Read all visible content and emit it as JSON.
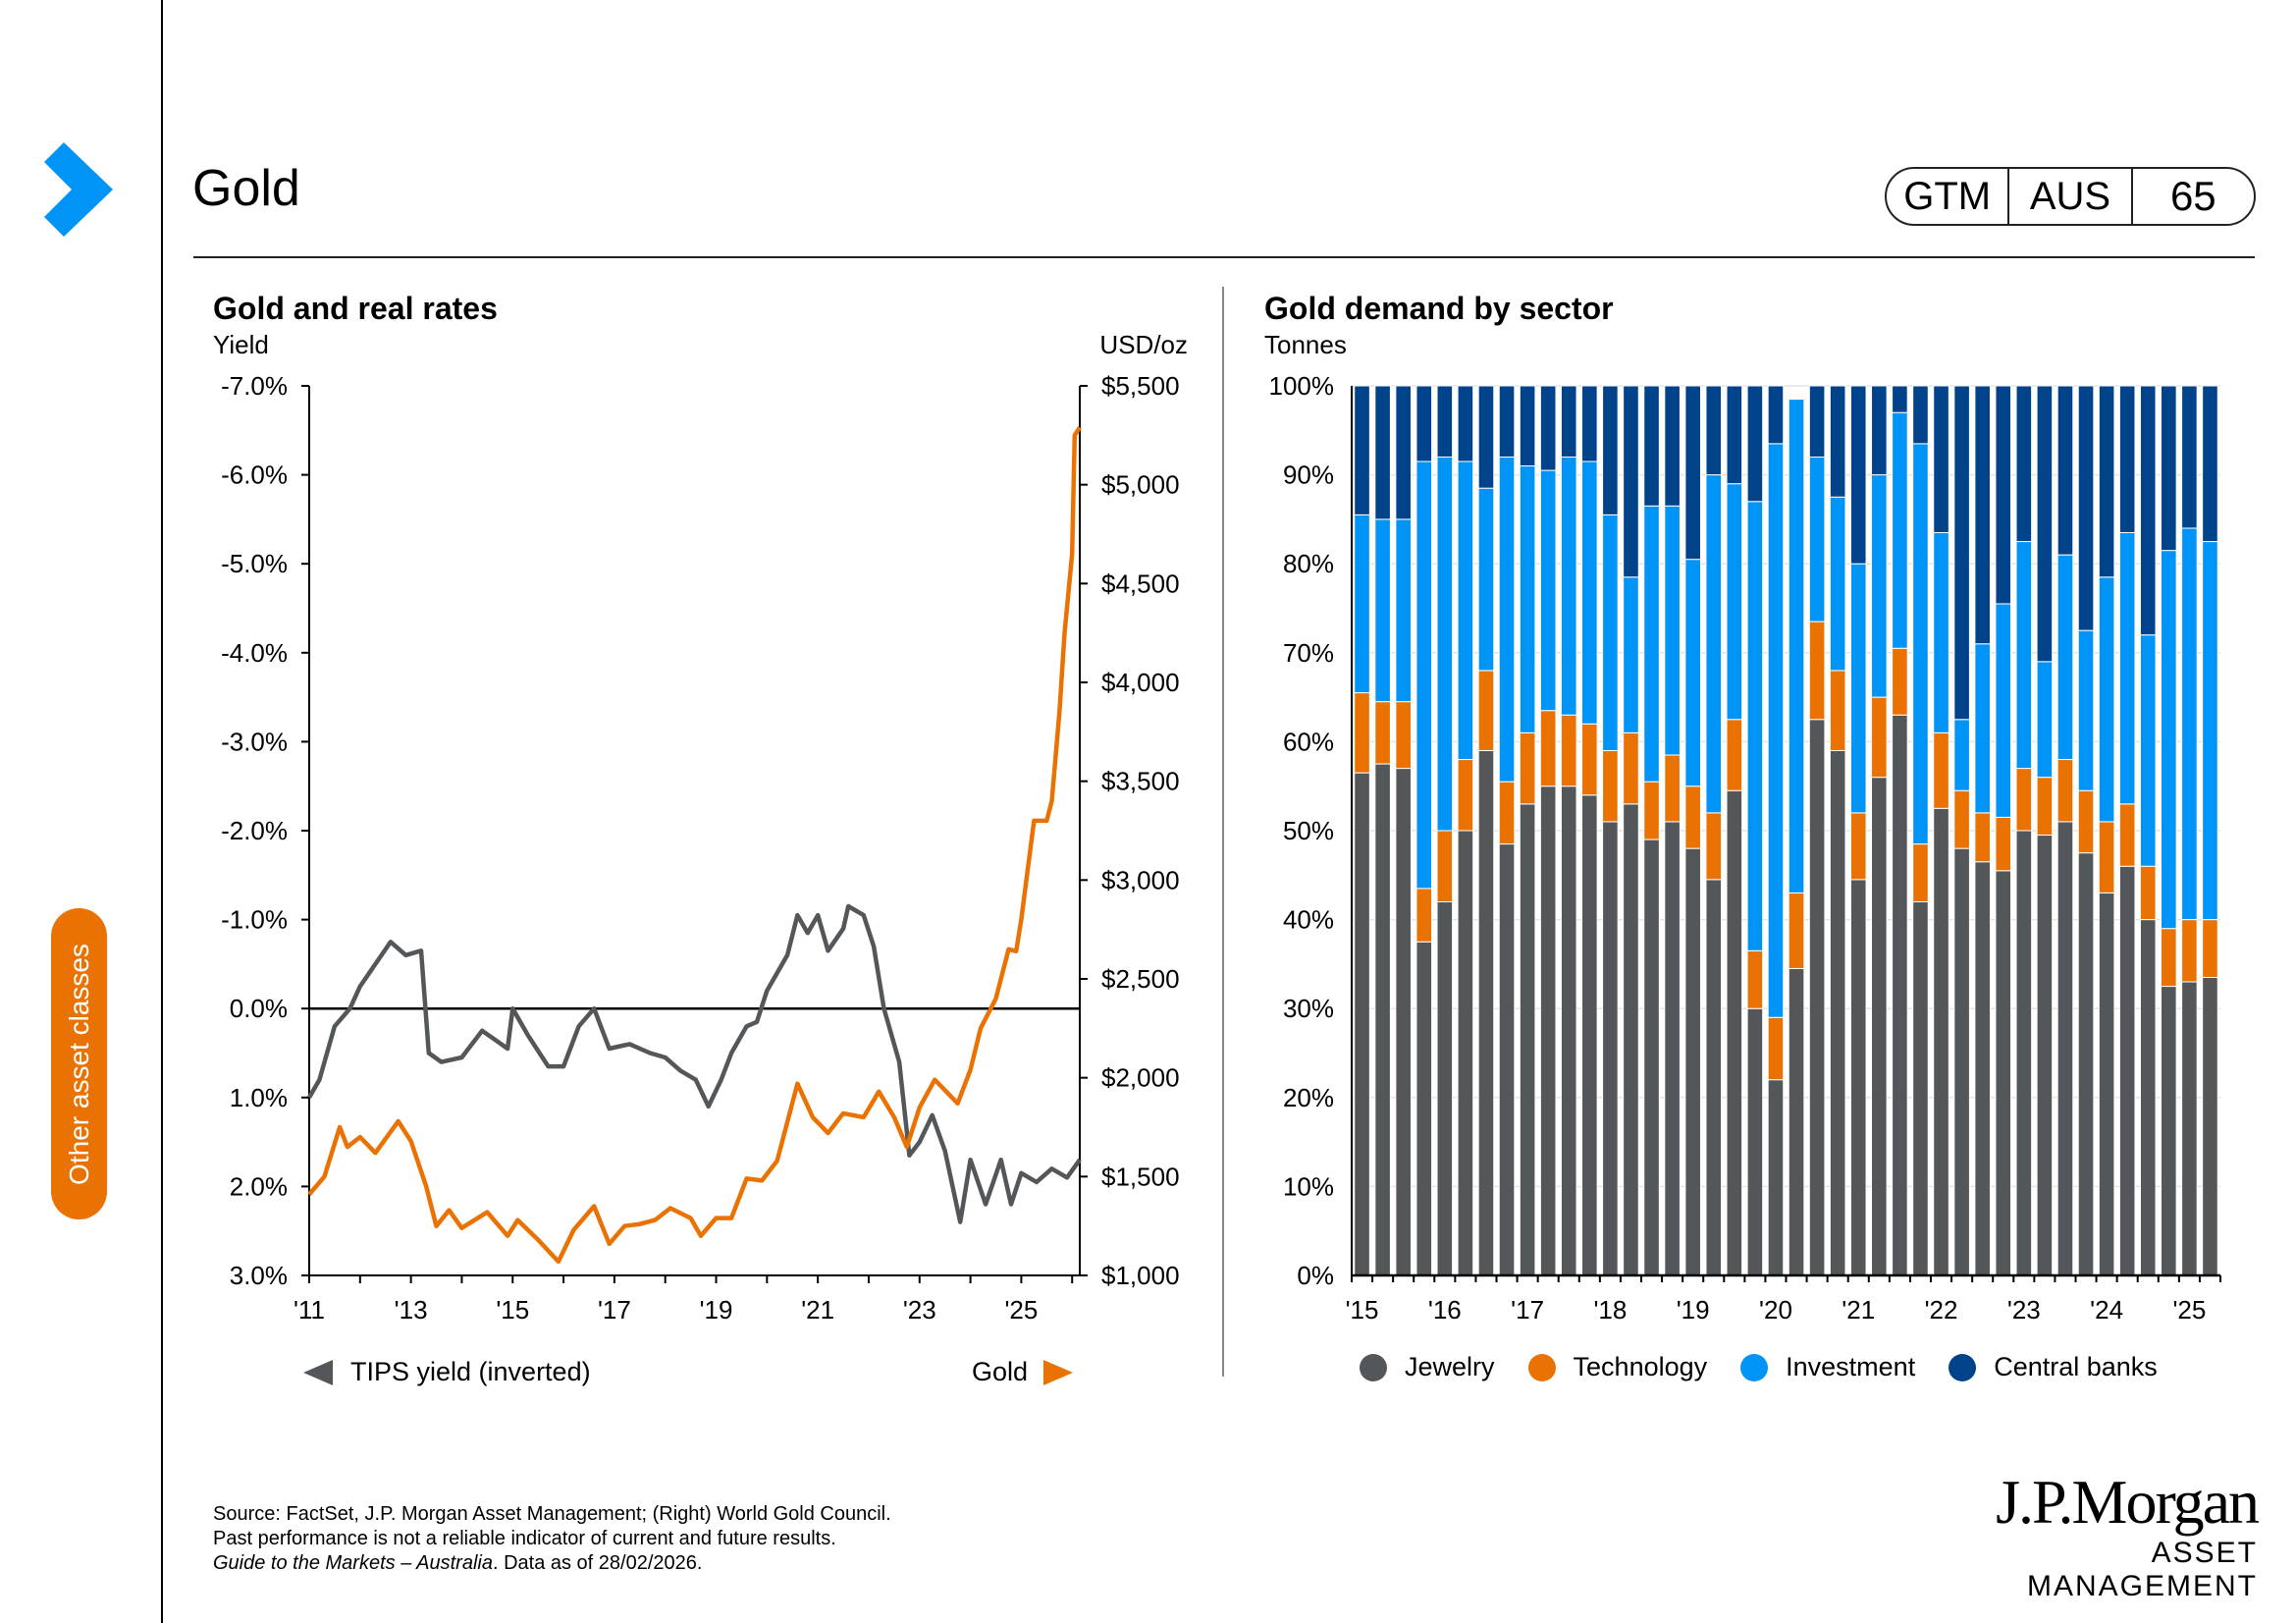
{
  "header": {
    "title": "Gold",
    "badge": [
      "GTM",
      "AUS",
      "65"
    ]
  },
  "side_tab": "Other asset classes",
  "footer": {
    "source": "Source: FactSet, J.P. Morgan Asset Management; (Right) World Gold Council.",
    "disclaimer": "Past performance is not a reliable indicator of current and future results.",
    "guide": "Guide to the Markets – Australia",
    "asof": ". Data as of 28/02/2026."
  },
  "logo": {
    "line1": "J.P.Morgan",
    "line2": "ASSET MANAGEMENT"
  },
  "colors": {
    "gray": "#54575a",
    "orange": "#ea7203",
    "blue": "#0094f7",
    "navy": "#00438a"
  },
  "chart_data": [
    {
      "type": "line",
      "title": "Gold and real rates",
      "ylabel": "Yield",
      "y2label": "USD/oz",
      "ylim": [
        -7,
        3
      ],
      "y_inverted": true,
      "y2lim": [
        1000,
        5500
      ],
      "yticks": [
        "-7.0%",
        "-6.0%",
        "-5.0%",
        "-4.0%",
        "-3.0%",
        "-2.0%",
        "-1.0%",
        "0.0%",
        "1.0%",
        "2.0%",
        "3.0%"
      ],
      "y2ticks": [
        "$5,500",
        "$5,000",
        "$4,500",
        "$4,000",
        "$3,500",
        "$3,000",
        "$2,500",
        "$2,000",
        "$1,500",
        "$1,000"
      ],
      "xticks": [
        "'11",
        "'13",
        "'15",
        "'17",
        "'19",
        "'21",
        "'23",
        "'25"
      ],
      "xlim": [
        2011,
        2026.15
      ],
      "legend": {
        "left": "TIPS yield (inverted)",
        "right": "Gold"
      },
      "series": [
        {
          "name": "TIPS yield (inverted)",
          "axis": "left",
          "color": "#54575a",
          "x": [
            2011.0,
            2011.2,
            2011.5,
            2011.8,
            2012.0,
            2012.3,
            2012.6,
            2012.9,
            2013.2,
            2013.35,
            2013.6,
            2014.0,
            2014.4,
            2014.9,
            2015.0,
            2015.3,
            2015.7,
            2016.0,
            2016.3,
            2016.6,
            2016.9,
            2017.3,
            2017.7,
            2018.0,
            2018.3,
            2018.6,
            2018.85,
            2019.1,
            2019.3,
            2019.6,
            2019.8,
            2020.0,
            2020.4,
            2020.6,
            2020.8,
            2021.0,
            2021.2,
            2021.5,
            2021.6,
            2021.9,
            2022.1,
            2022.3,
            2022.6,
            2022.8,
            2023.0,
            2023.25,
            2023.5,
            2023.8,
            2024.0,
            2024.3,
            2024.6,
            2024.8,
            2025.0,
            2025.3,
            2025.6,
            2025.9,
            2026.15
          ],
          "y": [
            1.0,
            0.8,
            0.2,
            0.0,
            -0.25,
            -0.5,
            -0.75,
            -0.6,
            -0.65,
            0.5,
            0.6,
            0.55,
            0.25,
            0.45,
            0.0,
            0.3,
            0.65,
            0.65,
            0.2,
            0.0,
            0.45,
            0.4,
            0.5,
            0.55,
            0.7,
            0.8,
            1.1,
            0.8,
            0.5,
            0.2,
            0.15,
            -0.2,
            -0.6,
            -1.05,
            -0.85,
            -1.05,
            -0.65,
            -0.9,
            -1.15,
            -1.05,
            -0.7,
            0.0,
            0.6,
            1.65,
            1.5,
            1.2,
            1.6,
            2.4,
            1.7,
            2.2,
            1.7,
            2.2,
            1.85,
            1.95,
            1.8,
            1.9,
            1.7
          ]
        },
        {
          "name": "Gold",
          "axis": "right",
          "color": "#ea7203",
          "x": [
            2011.0,
            2011.3,
            2011.6,
            2011.75,
            2012.0,
            2012.3,
            2012.75,
            2013.0,
            2013.3,
            2013.5,
            2013.75,
            2014.0,
            2014.5,
            2014.9,
            2015.1,
            2015.5,
            2015.9,
            2016.2,
            2016.6,
            2016.9,
            2017.2,
            2017.5,
            2017.8,
            2018.1,
            2018.5,
            2018.7,
            2019.0,
            2019.3,
            2019.6,
            2019.9,
            2020.2,
            2020.6,
            2020.9,
            2021.2,
            2021.5,
            2021.9,
            2022.2,
            2022.5,
            2022.75,
            2023.0,
            2023.3,
            2023.75,
            2024.0,
            2024.2,
            2024.5,
            2024.75,
            2024.9,
            2025.0,
            2025.25,
            2025.5,
            2025.6,
            2025.75,
            2025.85,
            2026.0,
            2026.05,
            2026.15
          ],
          "y": [
            1410,
            1500,
            1750,
            1650,
            1700,
            1620,
            1780,
            1680,
            1450,
            1250,
            1330,
            1240,
            1320,
            1200,
            1280,
            1180,
            1070,
            1230,
            1350,
            1160,
            1250,
            1260,
            1280,
            1340,
            1290,
            1200,
            1290,
            1290,
            1490,
            1480,
            1580,
            1970,
            1800,
            1720,
            1820,
            1800,
            1930,
            1800,
            1650,
            1850,
            1990,
            1870,
            2040,
            2250,
            2400,
            2650,
            2640,
            2800,
            3300,
            3300,
            3400,
            3850,
            4250,
            4650,
            5250,
            5290
          ]
        }
      ]
    },
    {
      "type": "bar",
      "stacked": true,
      "title": "Gold demand by sector",
      "ylabel": "Tonnes",
      "ylim": [
        0,
        100
      ],
      "yticks": [
        "0%",
        "10%",
        "20%",
        "30%",
        "40%",
        "50%",
        "60%",
        "70%",
        "80%",
        "90%",
        "100%"
      ],
      "xticks": [
        "'15",
        "'16",
        "'17",
        "'18",
        "'19",
        "'20",
        "'21",
        "'22",
        "'23",
        "'24",
        "'25"
      ],
      "categories": [
        "1Q15",
        "2Q15",
        "3Q15",
        "4Q15",
        "1Q16",
        "2Q16",
        "3Q16",
        "4Q16",
        "1Q17",
        "2Q17",
        "3Q17",
        "4Q17",
        "1Q18",
        "2Q18",
        "3Q18",
        "4Q18",
        "1Q19",
        "2Q19",
        "3Q19",
        "4Q19",
        "1Q20",
        "2Q20",
        "3Q20",
        "4Q20",
        "1Q21",
        "2Q21",
        "3Q21",
        "4Q21",
        "1Q22",
        "2Q22",
        "3Q22",
        "4Q22",
        "1Q23",
        "2Q23",
        "3Q23",
        "4Q23",
        "1Q24",
        "2Q24",
        "3Q24",
        "4Q24",
        "1Q25",
        "2Q25"
      ],
      "series": [
        {
          "name": "Jewelry",
          "color": "#54575a",
          "values": [
            56.5,
            57.5,
            57,
            37.5,
            42,
            50,
            59,
            48.5,
            53,
            55,
            55,
            54,
            51,
            53,
            49,
            51,
            48,
            44.5,
            54.5,
            30,
            22,
            34.5,
            62.5,
            59,
            44.5,
            56,
            63,
            42,
            52.5,
            48,
            46.5,
            45.5,
            50,
            49.5,
            51,
            47.5,
            43,
            46,
            40,
            32.5,
            33,
            33.5
          ]
        },
        {
          "name": "Technology",
          "color": "#ea7203",
          "values": [
            9,
            7,
            7.5,
            6,
            8,
            8,
            9,
            7,
            8,
            8.5,
            8,
            8,
            8,
            8,
            6.5,
            7.5,
            7,
            7.5,
            8,
            6.5,
            7,
            8.5,
            11,
            9,
            7.5,
            9,
            7.5,
            6.5,
            8.5,
            6.5,
            5.5,
            6,
            7,
            6.5,
            7,
            7,
            8,
            7,
            6,
            6.5,
            7,
            6.5
          ]
        },
        {
          "name": "Investment",
          "color": "#0094f7",
          "values": [
            20,
            20.5,
            20.5,
            48,
            42,
            33.5,
            20.5,
            36.5,
            30,
            27,
            29,
            29.5,
            26.5,
            17.5,
            31,
            28,
            25.5,
            38,
            26.5,
            50.5,
            64.5,
            55.5,
            18.5,
            19.5,
            28,
            25,
            26.5,
            45,
            22.5,
            8,
            19,
            24,
            25.5,
            13,
            23,
            18,
            27.5,
            30.5,
            26,
            42.5,
            44,
            42.5
          ]
        },
        {
          "name": "Central banks",
          "color": "#00438a",
          "values": [
            14.5,
            15,
            15,
            8.5,
            8,
            8.5,
            11.5,
            8,
            9,
            9.5,
            8,
            8.5,
            14.5,
            21.5,
            13.5,
            13.5,
            19.5,
            10,
            11,
            13,
            6.5,
            0,
            8,
            12.5,
            20,
            10,
            3,
            6.5,
            16.5,
            37.5,
            29,
            24.5,
            17.5,
            31,
            19,
            27.5,
            21.5,
            16.5,
            28,
            18.5,
            16,
            17.5
          ]
        }
      ]
    }
  ]
}
